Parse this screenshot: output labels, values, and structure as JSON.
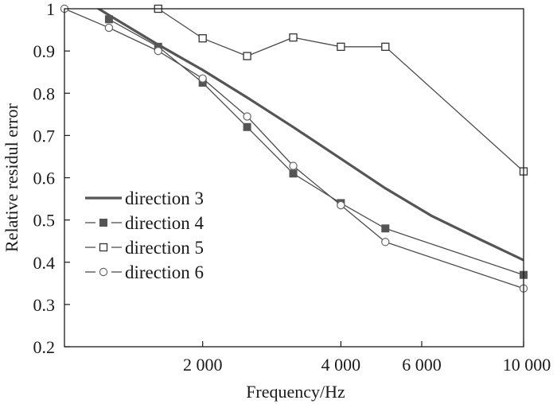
{
  "chart_data": {
    "type": "line",
    "xlabel": "Frequency/Hz",
    "ylabel": "Relative residul error",
    "xscale": "log",
    "xlim": [
      1000,
      10000
    ],
    "ylim": [
      0.2,
      1.0
    ],
    "x_ticks": [
      2000,
      4000,
      6000,
      10000
    ],
    "x_tick_labels": [
      "2 000",
      "4 000",
      "6 000",
      "10 000"
    ],
    "y_ticks": [
      0.2,
      0.3,
      0.4,
      0.5,
      0.6,
      0.7,
      0.8,
      0.9,
      1.0
    ],
    "y_tick_labels": [
      "0.2",
      "0.3",
      "0.4",
      "0.5",
      "0.6",
      "0.7",
      "0.8",
      "0.9",
      "1"
    ],
    "legend_position": "lower-left",
    "grid": false,
    "series": [
      {
        "name": "direction 3",
        "marker": "none",
        "color": "#555555",
        "x": [
          1000,
          1250,
          1600,
          2000,
          2500,
          3150,
          4000,
          5000,
          6300,
          8000,
          10000
        ],
        "y": [
          1.05,
          0.985,
          0.915,
          0.855,
          0.79,
          0.72,
          0.645,
          0.575,
          0.51,
          0.455,
          0.405
        ]
      },
      {
        "name": "direction 4",
        "marker": "filled-square",
        "color": "#555555",
        "x": [
          1250,
          1600,
          2000,
          2500,
          3150,
          4000,
          5000,
          10000
        ],
        "y": [
          0.975,
          0.91,
          0.825,
          0.72,
          0.61,
          0.54,
          0.48,
          0.37
        ]
      },
      {
        "name": "direction 5",
        "marker": "open-square",
        "color": "#555555",
        "x": [
          1600,
          2000,
          2500,
          3150,
          4000,
          5000,
          10000
        ],
        "y": [
          1.0,
          0.93,
          0.888,
          0.932,
          0.91,
          0.91,
          0.615
        ]
      },
      {
        "name": "direction 6",
        "marker": "open-circle",
        "color": "#555555",
        "x": [
          1000,
          1250,
          1600,
          2000,
          2500,
          3150,
          4000,
          5000,
          10000
        ],
        "y": [
          1.0,
          0.955,
          0.9,
          0.835,
          0.745,
          0.628,
          0.535,
          0.448,
          0.338
        ]
      }
    ]
  }
}
